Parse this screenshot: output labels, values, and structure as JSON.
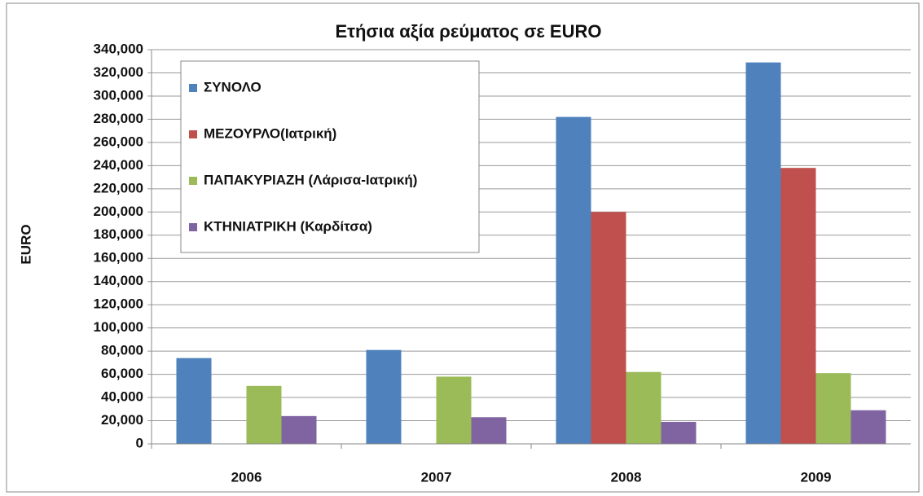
{
  "chart_data": {
    "type": "bar",
    "title": "Ετήσια αξία ρεύματος σε EURO",
    "y_label": "EURO",
    "categories": [
      "2006",
      "2007",
      "2008",
      "2009"
    ],
    "series": [
      {
        "name": "ΣΥΝΟΛΟ",
        "color": "#4f81bd",
        "values": [
          74000,
          81000,
          282000,
          329000
        ]
      },
      {
        "name": "ΜΕΖΟΥΡΛΟ(Ιατρική)",
        "color": "#c0504d",
        "values": [
          null,
          null,
          200000,
          238000
        ]
      },
      {
        "name": "ΠΑΠΑΚΥΡΙΑΖΗ (Λάρισα-Ιατρική)",
        "color": "#9bbb59",
        "values": [
          50000,
          58000,
          62000,
          61000
        ]
      },
      {
        "name": "ΚΤΗΝΙΑΤΡΙΚΗ (Καρδίτσα)",
        "color": "#8064a2",
        "values": [
          24000,
          23000,
          19000,
          29000
        ]
      }
    ],
    "ylim": [
      0,
      340000
    ],
    "yticks": [
      0,
      {
        "value": 20000,
        "label": "20,000"
      },
      {
        "value": 40000,
        "label": "40,000"
      },
      {
        "value": 60000,
        "label": "60,000"
      },
      {
        "value": 80000,
        "label": "80,000"
      },
      {
        "value": 100000,
        "label": "100,000"
      },
      {
        "value": 120000,
        "label": "120,000"
      },
      {
        "value": 140000,
        "label": "140,000"
      },
      {
        "value": 160000,
        "label": "160,000"
      },
      {
        "value": 180000,
        "label": "180,000"
      },
      {
        "value": 200000,
        "label": "200,000"
      },
      {
        "value": 220000,
        "label": "220,000"
      },
      {
        "value": 240000,
        "label": "240,000"
      },
      {
        "value": 260000,
        "label": "260,000"
      },
      {
        "value": 280000,
        "label": "280,000"
      },
      {
        "value": 300000,
        "label": "300,000"
      },
      {
        "value": 320000,
        "label": "320,000"
      },
      {
        "value": 340000,
        "label": "340,000"
      }
    ],
    "grid": true,
    "legend": "top-left"
  }
}
